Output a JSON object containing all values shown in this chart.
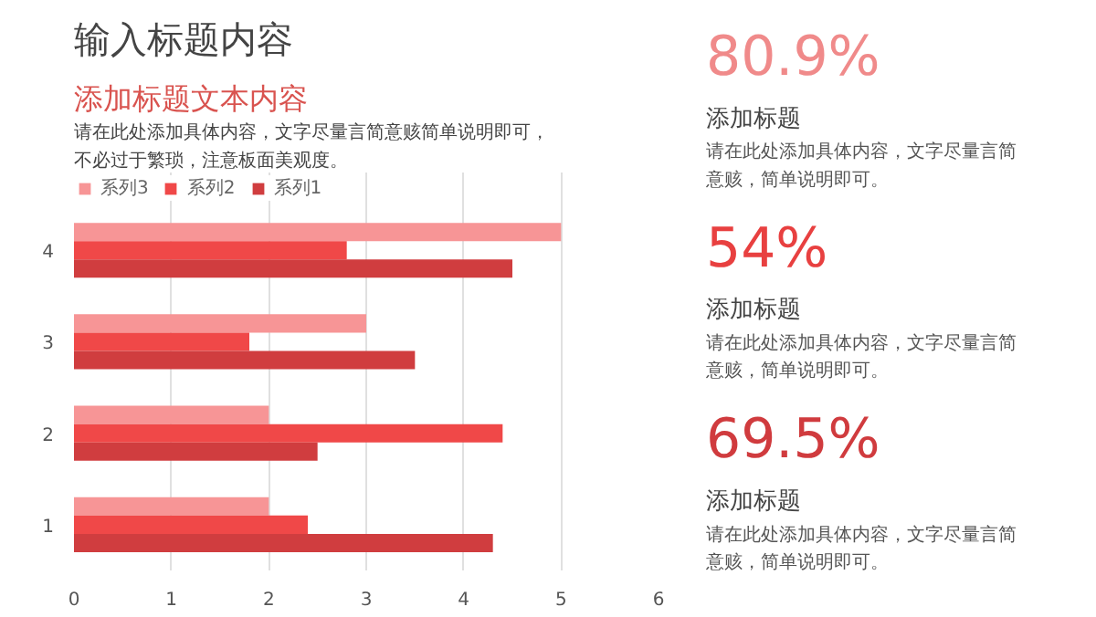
{
  "chart_data": [
    {
      "type": "bar",
      "orientation": "horizontal",
      "title": "添加标题文本内容",
      "subtitle": "请在此处添加具体内容，文字尽量言简意赅简单说明即可，不必过于繁琐，注意板面美观度。",
      "annotations": [
        "输入标题内容"
      ],
      "categories": [
        "4",
        "3",
        "2",
        "1"
      ],
      "series": [
        {
          "name": "系列3",
          "color": "#f79596",
          "values": [
            5,
            3,
            2,
            2
          ]
        },
        {
          "name": "系列2",
          "color": "#f04848",
          "values": [
            2.8,
            1.8,
            4.4,
            2.4
          ]
        },
        {
          "name": "系列1",
          "color": "#d03d3f",
          "values": [
            4.5,
            3.5,
            2.5,
            4.3
          ]
        }
      ],
      "xlim": [
        0,
        6
      ],
      "xticks": [
        0,
        1,
        2,
        3,
        4,
        5,
        6
      ],
      "grid": "x",
      "legend": "top left"
    },
    {
      "type": "other",
      "annotations": [
        "80.9%",
        "添加标题",
        "请在此处添加具体内容，文字尽量言简意赅，简单说明即可。",
        "54%",
        "添加标题",
        "请在此处添加具体内容，文字尽量言简意赅，简单说明即可。",
        "69.5%",
        "添加标题",
        "请在此处添加具体内容，文字尽量言简意赅，简单说明即可。"
      ]
    }
  ]
}
